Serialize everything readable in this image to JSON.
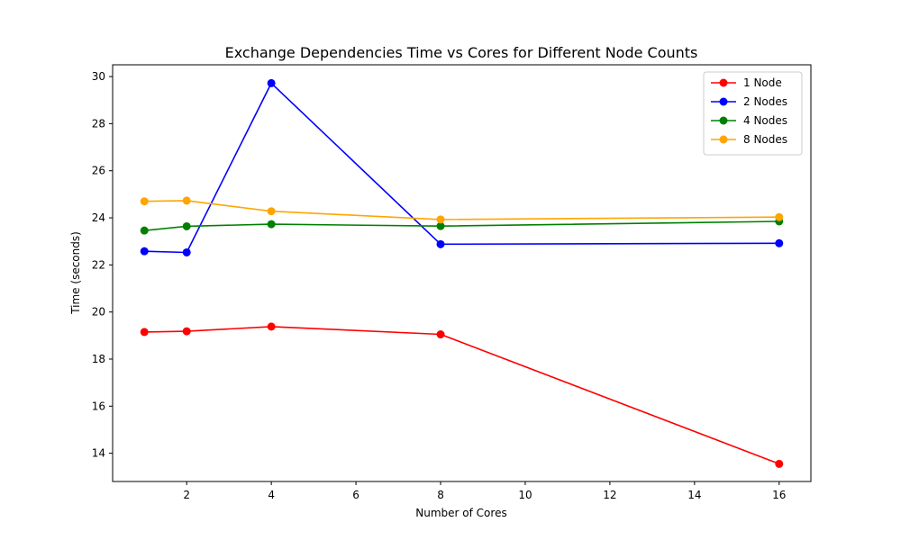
{
  "chart_data": {
    "type": "line",
    "title": "Exchange Dependencies Time vs Cores for Different Node Counts",
    "xlabel": "Number of Cores",
    "ylabel": "Time (seconds)",
    "x": [
      1,
      2,
      4,
      8,
      16
    ],
    "xlim": [
      0.25,
      16.75
    ],
    "ylim": [
      12.8,
      30.5
    ],
    "xticks": [
      2,
      4,
      6,
      8,
      10,
      12,
      14,
      16
    ],
    "yticks": [
      14,
      16,
      18,
      20,
      22,
      24,
      26,
      28,
      30
    ],
    "grid": false,
    "legend_position": "top-right",
    "series": [
      {
        "name": "1 Node",
        "color": "#ff0000",
        "values": [
          19.15,
          19.18,
          19.38,
          19.05,
          13.55
        ]
      },
      {
        "name": "2 Nodes",
        "color": "#0000ff",
        "values": [
          22.58,
          22.53,
          29.72,
          22.88,
          22.92
        ]
      },
      {
        "name": "4 Nodes",
        "color": "#008000",
        "values": [
          23.46,
          23.64,
          23.73,
          23.65,
          23.85
        ]
      },
      {
        "name": "8 Nodes",
        "color": "#ffa500",
        "values": [
          24.7,
          24.73,
          24.28,
          23.93,
          24.03
        ]
      }
    ]
  }
}
